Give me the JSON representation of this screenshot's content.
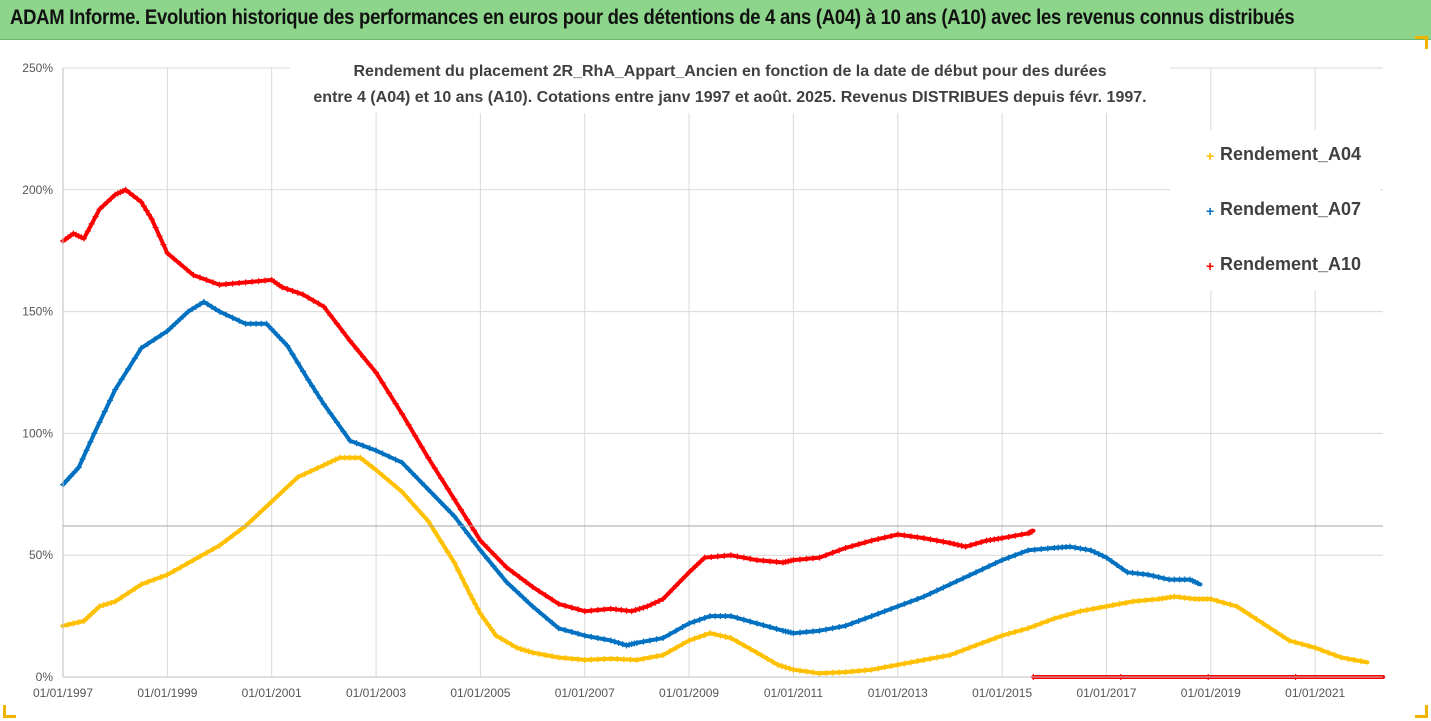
{
  "banner": {
    "title": "ADAM Informe. Evolution historique des performances en euros pour des détentions de 4 ans (A04) à 10 ans (A10) avec les revenus connus distribués"
  },
  "chart_title": {
    "line1": "Rendement du placement 2R_RhA_Appart_Ancien en fonction de la date de début pour des durées",
    "line2": "entre 4 (A04) et 10 ans (A10). Cotations entre janv 1997 et août. 2025. Revenus DISTRIBUES depuis févr. 1997."
  },
  "colors": {
    "banner_bg": "#8dd58a",
    "A04": "#ffc000",
    "A07": "#0070c0",
    "A10": "#ff0000",
    "grid": "#d9d9d9"
  },
  "chart_data": {
    "type": "line",
    "x_unit": "year (decimal)",
    "xlim": [
      1997.0,
      2022.3
    ],
    "ylim": [
      0,
      250
    ],
    "y_ticks": [
      0,
      50,
      100,
      150,
      200,
      250
    ],
    "y_tick_labels": [
      "0%",
      "50%",
      "100%",
      "150%",
      "200%",
      "250%"
    ],
    "x_ticks": [
      1997,
      1999,
      2001,
      2003,
      2005,
      2007,
      2009,
      2011,
      2013,
      2015,
      2017,
      2019,
      2021
    ],
    "x_tick_labels": [
      "01/01/1997",
      "01/01/1999",
      "01/01/2001",
      "01/01/2003",
      "01/01/2005",
      "01/01/2007",
      "01/01/2009",
      "01/01/2011",
      "01/01/2013",
      "01/01/2015",
      "01/01/2017",
      "01/01/2019",
      "01/01/2021"
    ],
    "grid": true,
    "legend_position": "right",
    "series": [
      {
        "name": "Rendement_A04",
        "color_key": "A04",
        "points": [
          [
            1997.0,
            21
          ],
          [
            1997.4,
            23
          ],
          [
            1997.7,
            29
          ],
          [
            1998.0,
            31
          ],
          [
            1998.5,
            38
          ],
          [
            1999.0,
            42
          ],
          [
            1999.5,
            48
          ],
          [
            2000.0,
            54
          ],
          [
            2000.5,
            62
          ],
          [
            2001.0,
            72
          ],
          [
            2001.5,
            82
          ],
          [
            2002.0,
            87
          ],
          [
            2002.3,
            90
          ],
          [
            2002.7,
            90
          ],
          [
            2003.0,
            85
          ],
          [
            2003.5,
            76
          ],
          [
            2004.0,
            64
          ],
          [
            2004.5,
            47
          ],
          [
            2004.8,
            34
          ],
          [
            2005.0,
            26
          ],
          [
            2005.3,
            17
          ],
          [
            2005.7,
            12
          ],
          [
            2006.0,
            10
          ],
          [
            2006.5,
            8
          ],
          [
            2007.0,
            7
          ],
          [
            2007.5,
            7.5
          ],
          [
            2008.0,
            7
          ],
          [
            2008.5,
            9
          ],
          [
            2009.0,
            15
          ],
          [
            2009.4,
            18
          ],
          [
            2009.8,
            16
          ],
          [
            2010.3,
            10
          ],
          [
            2010.7,
            5
          ],
          [
            2011.0,
            3
          ],
          [
            2011.5,
            1.5
          ],
          [
            2012.0,
            2
          ],
          [
            2012.5,
            3
          ],
          [
            2013.0,
            5
          ],
          [
            2013.5,
            7
          ],
          [
            2014.0,
            9
          ],
          [
            2014.5,
            13
          ],
          [
            2015.0,
            17
          ],
          [
            2015.5,
            20
          ],
          [
            2016.0,
            24
          ],
          [
            2016.5,
            27
          ],
          [
            2017.0,
            29
          ],
          [
            2017.5,
            31
          ],
          [
            2018.0,
            32
          ],
          [
            2018.3,
            33
          ],
          [
            2018.7,
            32
          ],
          [
            2019.0,
            32
          ],
          [
            2019.5,
            29
          ],
          [
            2020.0,
            22
          ],
          [
            2020.5,
            15
          ],
          [
            2021.0,
            12
          ],
          [
            2021.5,
            8
          ],
          [
            2022.0,
            6
          ]
        ]
      },
      {
        "name": "Rendement_A07",
        "color_key": "A07",
        "points": [
          [
            1997.0,
            79
          ],
          [
            1997.3,
            86
          ],
          [
            1997.6,
            100
          ],
          [
            1998.0,
            118
          ],
          [
            1998.5,
            135
          ],
          [
            1999.0,
            142
          ],
          [
            1999.4,
            150
          ],
          [
            1999.7,
            154
          ],
          [
            2000.0,
            150
          ],
          [
            2000.5,
            145
          ],
          [
            2000.9,
            145
          ],
          [
            2001.3,
            136
          ],
          [
            2001.7,
            122
          ],
          [
            2002.0,
            112
          ],
          [
            2002.5,
            97
          ],
          [
            2003.0,
            93
          ],
          [
            2003.5,
            88
          ],
          [
            2004.0,
            77
          ],
          [
            2004.5,
            66
          ],
          [
            2005.0,
            52
          ],
          [
            2005.5,
            39
          ],
          [
            2006.0,
            29
          ],
          [
            2006.5,
            20
          ],
          [
            2007.0,
            17
          ],
          [
            2007.5,
            15
          ],
          [
            2007.8,
            13
          ],
          [
            2008.0,
            14
          ],
          [
            2008.5,
            16
          ],
          [
            2009.0,
            22
          ],
          [
            2009.4,
            25
          ],
          [
            2009.8,
            25
          ],
          [
            2010.3,
            22
          ],
          [
            2010.8,
            19
          ],
          [
            2011.0,
            18
          ],
          [
            2011.5,
            19
          ],
          [
            2012.0,
            21
          ],
          [
            2012.5,
            25
          ],
          [
            2013.0,
            29
          ],
          [
            2013.5,
            33
          ],
          [
            2014.0,
            38
          ],
          [
            2014.5,
            43
          ],
          [
            2015.0,
            48
          ],
          [
            2015.5,
            52
          ],
          [
            2016.0,
            53
          ],
          [
            2016.3,
            53.5
          ],
          [
            2016.7,
            52
          ],
          [
            2017.0,
            49
          ],
          [
            2017.4,
            43
          ],
          [
            2017.8,
            42
          ],
          [
            2018.2,
            40
          ],
          [
            2018.6,
            40
          ],
          [
            2018.8,
            38
          ]
        ]
      },
      {
        "name": "Rendement_A10",
        "color_key": "A10",
        "points": [
          [
            1997.0,
            179
          ],
          [
            1997.2,
            182
          ],
          [
            1997.4,
            180
          ],
          [
            1997.7,
            192
          ],
          [
            1998.0,
            198
          ],
          [
            1998.2,
            200
          ],
          [
            1998.5,
            195
          ],
          [
            1998.7,
            188
          ],
          [
            1999.0,
            174
          ],
          [
            1999.5,
            165
          ],
          [
            2000.0,
            161
          ],
          [
            2000.5,
            162
          ],
          [
            2001.0,
            163
          ],
          [
            2001.2,
            160
          ],
          [
            2001.6,
            157
          ],
          [
            2002.0,
            152
          ],
          [
            2002.5,
            138
          ],
          [
            2003.0,
            125
          ],
          [
            2003.5,
            108
          ],
          [
            2004.0,
            90
          ],
          [
            2004.5,
            73
          ],
          [
            2005.0,
            56
          ],
          [
            2005.5,
            45
          ],
          [
            2006.0,
            37
          ],
          [
            2006.5,
            30
          ],
          [
            2007.0,
            27
          ],
          [
            2007.5,
            28
          ],
          [
            2007.9,
            27
          ],
          [
            2008.2,
            29
          ],
          [
            2008.5,
            32
          ],
          [
            2009.0,
            43
          ],
          [
            2009.3,
            49
          ],
          [
            2009.8,
            50
          ],
          [
            2010.3,
            48
          ],
          [
            2010.8,
            47
          ],
          [
            2011.0,
            48
          ],
          [
            2011.5,
            49
          ],
          [
            2012.0,
            53
          ],
          [
            2012.5,
            56
          ],
          [
            2013.0,
            58.5
          ],
          [
            2013.5,
            57
          ],
          [
            2014.0,
            55
          ],
          [
            2014.3,
            53.5
          ],
          [
            2014.7,
            56
          ],
          [
            2015.0,
            57
          ],
          [
            2015.5,
            59
          ],
          [
            2015.6,
            60
          ]
        ]
      },
      {
        "name": "Rendement_A10_zero",
        "color_key": "A10",
        "points": [
          [
            2015.6,
            0
          ],
          [
            2022.3,
            0
          ]
        ]
      }
    ]
  },
  "legend": [
    {
      "label": "Rendement_A04",
      "color_key": "A04"
    },
    {
      "label": "Rendement_A07",
      "color_key": "A07"
    },
    {
      "label": "Rendement_A10",
      "color_key": "A10"
    }
  ]
}
